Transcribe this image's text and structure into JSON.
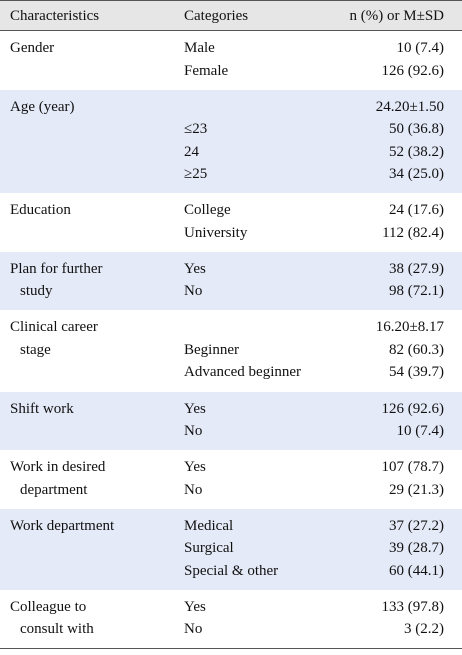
{
  "table": {
    "header": [
      "Characteristics",
      "Categories",
      "n (%) or M±SD"
    ],
    "groups": [
      {
        "characteristic": [
          "Gender"
        ],
        "rows": [
          [
            "Male",
            "10 (7.4)"
          ],
          [
            "Female",
            "126 (92.6)"
          ]
        ]
      },
      {
        "characteristic": [
          "Age (year)"
        ],
        "rows": [
          [
            null,
            "24.20±1.50"
          ],
          [
            "≤23",
            "50 (36.8)"
          ],
          [
            "24",
            "52 (38.2)"
          ],
          [
            "≥25",
            "34 (25.0)"
          ]
        ]
      },
      {
        "characteristic": [
          "Education"
        ],
        "rows": [
          [
            "College",
            "24 (17.6)"
          ],
          [
            "University",
            "112 (82.4)"
          ]
        ]
      },
      {
        "characteristic": [
          "Plan for further",
          "study"
        ],
        "rows": [
          [
            "Yes",
            "38 (27.9)"
          ],
          [
            "No",
            "98 (72.1)"
          ]
        ]
      },
      {
        "characteristic": [
          "Clinical career",
          "stage"
        ],
        "rows": [
          [
            null,
            "16.20±8.17"
          ],
          [
            "Beginner",
            "82 (60.3)"
          ],
          [
            "Advanced beginner",
            "54 (39.7)"
          ]
        ]
      },
      {
        "characteristic": [
          "Shift work"
        ],
        "rows": [
          [
            "Yes",
            "126 (92.6)"
          ],
          [
            "No",
            "10 (7.4)"
          ]
        ]
      },
      {
        "characteristic": [
          "Work in desired",
          "department"
        ],
        "rows": [
          [
            "Yes",
            "107 (78.7)"
          ],
          [
            "No",
            "29 (21.3)"
          ]
        ]
      },
      {
        "characteristic": [
          "Work department"
        ],
        "rows": [
          [
            "Medical",
            "37 (27.2)"
          ],
          [
            "Surgical",
            "39 (28.7)"
          ],
          [
            "Special & other",
            "60 (44.1)"
          ]
        ]
      },
      {
        "characteristic": [
          "Colleague to",
          "consult with"
        ],
        "rows": [
          [
            "Yes",
            "133 (97.8)"
          ],
          [
            "No",
            "3 (2.2)"
          ]
        ]
      }
    ]
  }
}
